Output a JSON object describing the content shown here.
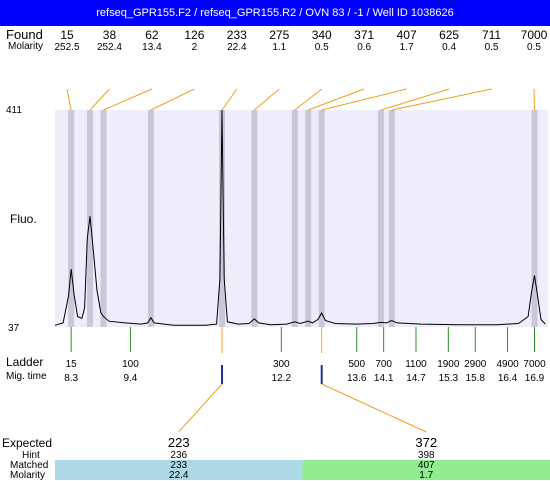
{
  "title": "refseq_GPR155.F2 / refseq_GPR155.R2 / OVN 83 / -1 / Well ID 1038626",
  "labels": {
    "found": "Found",
    "molarity": "Molarity",
    "fluo": "Fluo.",
    "ladder": "Ladder",
    "mig_time": "Mig. time",
    "expected": "Expected",
    "hint": "Hint",
    "matched": "Matched",
    "molarity_bottom": "Molarity"
  },
  "colors": {
    "title_bg": "#0000ff",
    "plot_bg": "#eeeefb",
    "band": "#c8c8d8",
    "connector": "#f0a020",
    "ladder_tick": "#2e8b2e",
    "expected_marker": "#1f2f8f",
    "expected_row1": "#add8e6",
    "expected_row2": "#90ee90"
  },
  "chart_data": {
    "type": "line",
    "ylim": [
      37,
      411
    ],
    "y_tick_labels": [
      "411",
      "37"
    ],
    "found_peaks": [
      {
        "size": "15",
        "molarity": "252.5",
        "time": 8.3
      },
      {
        "size": "38",
        "molarity": "252.4",
        "time": 8.65
      },
      {
        "size": "62",
        "molarity": "13.4",
        "time": 8.9
      },
      {
        "size": "126",
        "molarity": "2",
        "time": 9.78
      },
      {
        "size": "233",
        "molarity": "22.4",
        "time": 11.1
      },
      {
        "size": "275",
        "molarity": "1.1",
        "time": 11.7
      },
      {
        "size": "340",
        "molarity": "0.5",
        "time": 12.45
      },
      {
        "size": "371",
        "molarity": "0.6",
        "time": 12.7
      },
      {
        "size": "407",
        "molarity": "1.7",
        "time": 12.95
      },
      {
        "size": "625",
        "molarity": "0.4",
        "time": 14.05
      },
      {
        "size": "711",
        "molarity": "0.5",
        "time": 14.25
      },
      {
        "size": "7000",
        "molarity": "0.5",
        "time": 16.9
      }
    ],
    "ladder": [
      {
        "size": "15",
        "time": "8.3",
        "t": 8.3
      },
      {
        "size": "100",
        "time": "9.4",
        "t": 9.4
      },
      {
        "size": "300",
        "time": "12.2",
        "t": 12.2
      },
      {
        "size": "500",
        "time": "13.6",
        "t": 13.6
      },
      {
        "size": "700",
        "time": "14.1",
        "t": 14.1
      },
      {
        "size": "1100",
        "time": "14.7",
        "t": 14.7
      },
      {
        "size": "1900",
        "time": "15.3",
        "t": 15.3
      },
      {
        "size": "2900",
        "time": "15.8",
        "t": 15.8
      },
      {
        "size": "4900",
        "time": "16.4",
        "t": 16.4
      },
      {
        "size": "7000",
        "time": "16.9",
        "t": 16.9
      }
    ],
    "trace": [
      [
        8.0,
        40
      ],
      [
        8.15,
        44
      ],
      [
        8.25,
        90
      ],
      [
        8.3,
        137
      ],
      [
        8.35,
        95
      ],
      [
        8.42,
        55
      ],
      [
        8.5,
        52
      ],
      [
        8.55,
        70
      ],
      [
        8.6,
        190
      ],
      [
        8.65,
        228
      ],
      [
        8.7,
        180
      ],
      [
        8.78,
        100
      ],
      [
        8.85,
        62
      ],
      [
        8.9,
        55
      ],
      [
        9.0,
        47
      ],
      [
        9.3,
        44
      ],
      [
        9.6,
        42
      ],
      [
        9.72,
        44
      ],
      [
        9.78,
        53
      ],
      [
        9.84,
        44
      ],
      [
        10.2,
        40
      ],
      [
        10.8,
        40
      ],
      [
        11.0,
        42
      ],
      [
        11.06,
        120
      ],
      [
        11.1,
        411
      ],
      [
        11.14,
        120
      ],
      [
        11.2,
        46
      ],
      [
        11.4,
        42
      ],
      [
        11.6,
        43
      ],
      [
        11.7,
        51
      ],
      [
        11.78,
        44
      ],
      [
        12.0,
        41
      ],
      [
        12.3,
        42
      ],
      [
        12.45,
        46
      ],
      [
        12.55,
        43
      ],
      [
        12.7,
        47
      ],
      [
        12.78,
        44
      ],
      [
        12.88,
        50
      ],
      [
        12.95,
        61
      ],
      [
        13.02,
        48
      ],
      [
        13.2,
        43
      ],
      [
        13.6,
        42
      ],
      [
        13.9,
        43
      ],
      [
        14.05,
        45
      ],
      [
        14.15,
        44
      ],
      [
        14.25,
        48
      ],
      [
        14.35,
        44
      ],
      [
        14.8,
        42
      ],
      [
        15.5,
        41
      ],
      [
        16.2,
        41
      ],
      [
        16.6,
        43
      ],
      [
        16.78,
        55
      ],
      [
        16.85,
        100
      ],
      [
        16.9,
        126
      ],
      [
        16.95,
        95
      ],
      [
        17.02,
        50
      ],
      [
        17.1,
        42
      ]
    ],
    "expected": [
      {
        "expected": "223",
        "hint": "236",
        "matched": "233",
        "molarity": "22.4",
        "time": 11.1
      },
      {
        "expected": "372",
        "hint": "398",
        "matched": "407",
        "molarity": "1.7",
        "time": 12.95
      }
    ]
  }
}
